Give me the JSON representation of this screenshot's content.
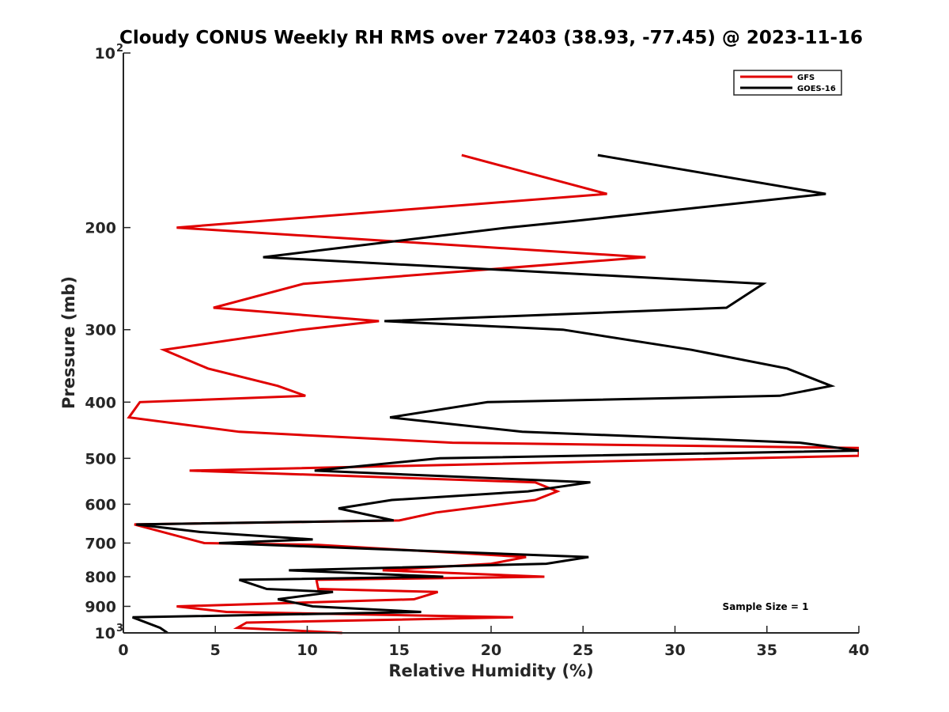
{
  "chart_data": {
    "type": "line",
    "title": "Cloudy CONUS Weekly RH RMS over 72403 (38.93, -77.45) @ 2023-11-16",
    "xlabel": "Relative Humidity (%)",
    "ylabel": "Pressure (mb)",
    "xlim": [
      0,
      40
    ],
    "ylim": [
      100,
      1000
    ],
    "y_scale": "log",
    "y_reversed": true,
    "x_ticks": [
      "0",
      "5",
      "10",
      "15",
      "20",
      "25",
      "30",
      "35",
      "40"
    ],
    "y_ticks": [
      {
        "value": 100,
        "base": "10",
        "exp": "2"
      },
      {
        "value": 200,
        "label": "200"
      },
      {
        "value": 300,
        "label": "300"
      },
      {
        "value": 400,
        "label": "400"
      },
      {
        "value": 500,
        "label": "500"
      },
      {
        "value": 600,
        "label": "600"
      },
      {
        "value": 700,
        "label": "700"
      },
      {
        "value": 800,
        "label": "800"
      },
      {
        "value": 900,
        "label": "900"
      },
      {
        "value": 1000,
        "base": "10",
        "exp": "3"
      }
    ],
    "legend_position": "top-right",
    "grid": false,
    "annotation": "Sample Size = 1",
    "series": [
      {
        "name": "GFS",
        "color": "#e00000",
        "points": [
          [
            18.4,
            150
          ],
          [
            26.3,
            175
          ],
          [
            2.9,
            200
          ],
          [
            28.4,
            225
          ],
          [
            9.8,
            250
          ],
          [
            4.9,
            275
          ],
          [
            13.9,
            290
          ],
          [
            9.7,
            300
          ],
          [
            2.2,
            325
          ],
          [
            4.6,
            350
          ],
          [
            8.4,
            375
          ],
          [
            9.9,
            390
          ],
          [
            0.9,
            400
          ],
          [
            0.3,
            425
          ],
          [
            6.3,
            450
          ],
          [
            17.9,
            470
          ],
          [
            40,
            480
          ],
          [
            40,
            495
          ],
          [
            3.6,
            525
          ],
          [
            22.4,
            550
          ],
          [
            23.6,
            570
          ],
          [
            22.4,
            590
          ],
          [
            17.0,
            620
          ],
          [
            15.0,
            640
          ],
          [
            0.6,
            650
          ],
          [
            4.4,
            700
          ],
          [
            10.6,
            705
          ],
          [
            21.9,
            740
          ],
          [
            20.0,
            760
          ],
          [
            14.1,
            780
          ],
          [
            22.9,
            800
          ],
          [
            10.5,
            810
          ],
          [
            10.6,
            840
          ],
          [
            17.1,
            850
          ],
          [
            15.8,
            875
          ],
          [
            2.9,
            900
          ],
          [
            5.6,
            920
          ],
          [
            21.2,
            940
          ],
          [
            6.7,
            960
          ],
          [
            6.2,
            980
          ],
          [
            11.9,
            1000
          ]
        ]
      },
      {
        "name": "GOES-16",
        "color": "#000000",
        "points": [
          [
            25.8,
            150
          ],
          [
            38.2,
            175
          ],
          [
            24.4,
            195
          ],
          [
            20.9,
            200
          ],
          [
            7.6,
            225
          ],
          [
            34.8,
            250
          ],
          [
            32.8,
            275
          ],
          [
            14.2,
            290
          ],
          [
            23.9,
            300
          ],
          [
            30.9,
            325
          ],
          [
            36.1,
            350
          ],
          [
            38.5,
            375
          ],
          [
            35.7,
            390
          ],
          [
            19.8,
            400
          ],
          [
            14.5,
            425
          ],
          [
            21.7,
            450
          ],
          [
            36.8,
            470
          ],
          [
            40,
            485
          ],
          [
            17.2,
            500
          ],
          [
            10.4,
            525
          ],
          [
            25.4,
            550
          ],
          [
            22.0,
            570
          ],
          [
            14.6,
            590
          ],
          [
            11.7,
            610
          ],
          [
            14.7,
            640
          ],
          [
            0.7,
            650
          ],
          [
            4.2,
            670
          ],
          [
            10.3,
            690
          ],
          [
            5.2,
            700
          ],
          [
            25.3,
            740
          ],
          [
            23.0,
            760
          ],
          [
            9.0,
            780
          ],
          [
            17.4,
            800
          ],
          [
            6.3,
            810
          ],
          [
            7.8,
            840
          ],
          [
            11.4,
            850
          ],
          [
            8.4,
            875
          ],
          [
            10.3,
            900
          ],
          [
            16.2,
            920
          ],
          [
            0.5,
            940
          ],
          [
            2.0,
            980
          ],
          [
            2.4,
            1000
          ]
        ]
      }
    ]
  }
}
